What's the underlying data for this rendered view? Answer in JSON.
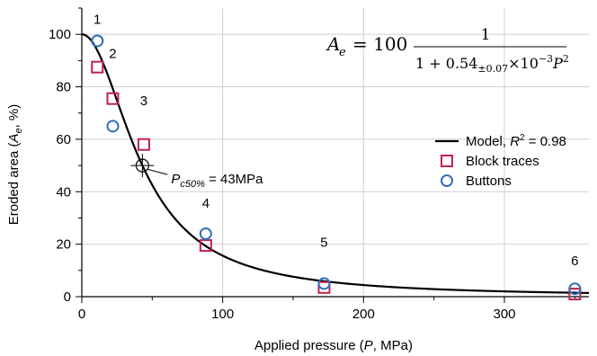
{
  "chart_data": {
    "type": "scatter",
    "xlabel": {
      "prefix": "Applied pressure (",
      "var": "P",
      "suffix": ", MPa)"
    },
    "ylabel": {
      "prefix": "Eroded area (",
      "var": "A",
      "sub": "e",
      "suffix": ", %)"
    },
    "xlim": [
      0,
      360
    ],
    "ylim": [
      0,
      110
    ],
    "x_ticks": [
      0,
      100,
      200,
      300
    ],
    "y_ticks": [
      0,
      20,
      40,
      60,
      80,
      100
    ],
    "grid": true,
    "legend_position": "right",
    "series": [
      {
        "name": "Model, R² = 0.98",
        "kind": "line",
        "color": "#000000",
        "formula": {
          "a": 100,
          "k": 0.00054,
          "exponent": 2
        }
      },
      {
        "name": "Block traces",
        "kind": "marker",
        "marker": "square",
        "color": "#c0224a",
        "points": [
          {
            "x": 11,
            "y": 87.5
          },
          {
            "x": 22,
            "y": 75.5
          },
          {
            "x": 44,
            "y": 58
          },
          {
            "x": 88,
            "y": 19.5
          },
          {
            "x": 172,
            "y": 3.5
          },
          {
            "x": 350,
            "y": 1
          }
        ]
      },
      {
        "name": "Buttons",
        "kind": "marker",
        "marker": "circle",
        "color": "#2e6fc0",
        "points": [
          {
            "x": 11,
            "y": 97.5
          },
          {
            "x": 22,
            "y": 65
          },
          {
            "x": 88,
            "y": 24
          },
          {
            "x": 172,
            "y": 5
          },
          {
            "x": 350,
            "y": 3
          }
        ]
      }
    ],
    "point_labels": [
      {
        "text": "1",
        "x": 11,
        "y": 104
      },
      {
        "text": "2",
        "x": 22,
        "y": 91
      },
      {
        "text": "3",
        "x": 44,
        "y": 73
      },
      {
        "text": "4",
        "x": 88,
        "y": 34
      },
      {
        "text": "5",
        "x": 172,
        "y": 19
      },
      {
        "text": "6",
        "x": 350,
        "y": 12
      }
    ],
    "p50_marker": {
      "x": 43,
      "y": 50,
      "label_prefix": "P",
      "label_sub": "c50%",
      "label_suffix": " = 43MPa"
    },
    "formula_text": {
      "lhs": "A",
      "lhs_sub": "e",
      "equals": "= 100",
      "numerator": "1",
      "denominator_left": "1 + 0.54",
      "denominator_sub": "±0.07",
      "denominator_mid": "×10",
      "denominator_exp": "−3",
      "denominator_var": "P",
      "denominator_pow": "2"
    }
  }
}
